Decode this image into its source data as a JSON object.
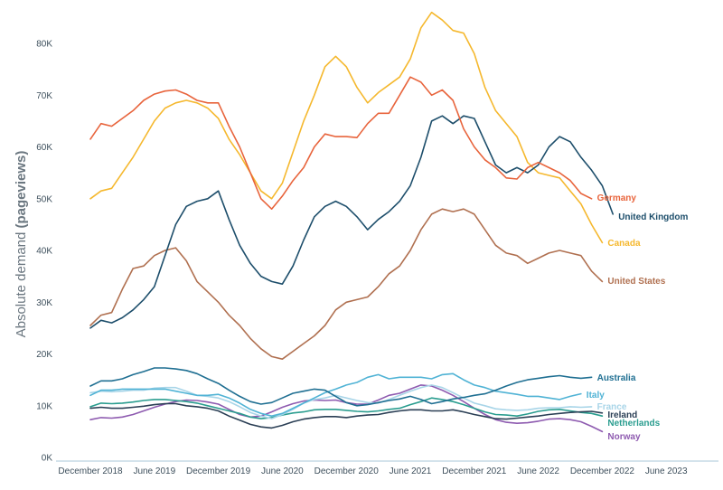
{
  "chart_data": {
    "type": "line",
    "ylabel": "Absolute demand",
    "ylabel_bold": "(pageviews)",
    "xlabel": "",
    "ylim": [
      0,
      88000
    ],
    "y_ticks": [
      0,
      10000,
      20000,
      30000,
      40000,
      50000,
      60000,
      70000,
      80000
    ],
    "y_tick_labels": [
      "0K",
      "10K",
      "20K",
      "30K",
      "40K",
      "50K",
      "60K",
      "70K",
      "80K"
    ],
    "x_start": "2018-12",
    "x_ticks": [
      "2018-12",
      "2019-06",
      "2019-12",
      "2020-06",
      "2020-12",
      "2021-06",
      "2021-12",
      "2022-06",
      "2022-12",
      "2023-06"
    ],
    "x_tick_labels": [
      "December 2018",
      "June 2019",
      "December 2019",
      "June 2020",
      "December 2020",
      "June 2021",
      "December 2021",
      "June 2022",
      "December 2022",
      "June 2023"
    ],
    "grid": false,
    "legend": "inline labels at line ends",
    "series": [
      {
        "name": "Germany",
        "color": "#e8643c",
        "values": [
          61500,
          64500,
          64000,
          65500,
          67000,
          69000,
          70200,
          70800,
          71000,
          70200,
          69000,
          68500,
          68500,
          64000,
          60000,
          55000,
          50000,
          48000,
          50500,
          53500,
          56000,
          60000,
          62500,
          62000,
          62000,
          61800,
          64500,
          66500,
          66500,
          70000,
          73500,
          72500,
          70000,
          71000,
          69000,
          63500,
          60000,
          57500,
          56000,
          54000,
          53800,
          56000,
          57000,
          56000,
          55000,
          53500,
          51000,
          50000
        ]
      },
      {
        "name": "United Kingdom",
        "color": "#1d4e6b",
        "values": [
          25000,
          26500,
          26000,
          27000,
          28500,
          30500,
          33000,
          39000,
          45000,
          48500,
          49500,
          50000,
          51500,
          46000,
          41000,
          37500,
          35000,
          34000,
          33500,
          37000,
          42000,
          46500,
          48500,
          49500,
          48500,
          46500,
          44000,
          46000,
          47500,
          49500,
          52500,
          58000,
          65000,
          66000,
          64500,
          66000,
          65500,
          61000,
          56500,
          55000,
          56000,
          55000,
          56500,
          60000,
          62000,
          61000,
          58000,
          55500,
          52500,
          47000
        ]
      },
      {
        "name": "Canada",
        "color": "#f5b82e",
        "values": [
          50000,
          51500,
          52000,
          55000,
          58000,
          61500,
          65000,
          67500,
          68500,
          69000,
          68500,
          67500,
          65500,
          61500,
          58500,
          55000,
          51500,
          50000,
          53000,
          59000,
          65000,
          70000,
          75500,
          77500,
          75500,
          71500,
          68500,
          70500,
          72000,
          73500,
          77000,
          83000,
          86000,
          84500,
          82500,
          82000,
          78000,
          71500,
          67000,
          64500,
          62000,
          57000,
          55000,
          54500,
          54000,
          51500,
          49000,
          45000,
          41500
        ]
      },
      {
        "name": "United States",
        "color": "#b07050",
        "values": [
          25500,
          27500,
          28000,
          32500,
          36500,
          37000,
          39000,
          40000,
          40500,
          38000,
          34000,
          32000,
          30000,
          27500,
          25500,
          23000,
          21000,
          19500,
          19000,
          20500,
          22000,
          23500,
          25500,
          28500,
          30000,
          30500,
          31000,
          33000,
          35500,
          37000,
          40000,
          44000,
          47000,
          48000,
          47500,
          48000,
          47000,
          44000,
          41000,
          39500,
          39000,
          37500,
          38500,
          39500,
          40000,
          39500,
          39000,
          36000,
          34000
        ]
      },
      {
        "name": "Australia",
        "color": "#1f6f92",
        "values": [
          13800,
          14800,
          14800,
          15200,
          16000,
          16600,
          17300,
          17300,
          17100,
          16800,
          16200,
          15200,
          14300,
          13000,
          11800,
          10800,
          10300,
          10600,
          11500,
          12400,
          12800,
          13200,
          13000,
          11800,
          10600,
          10000,
          10200,
          10600,
          11000,
          11300,
          11800,
          11200,
          10400,
          10800,
          11300,
          11600,
          12000,
          12300,
          13000,
          13800,
          14500,
          15000,
          15300,
          15600,
          15800,
          15500,
          15300,
          15500
        ]
      },
      {
        "name": "Italy",
        "color": "#50b3d5",
        "values": [
          12000,
          13000,
          13000,
          13200,
          13200,
          13200,
          13200,
          13200,
          12800,
          12400,
          12000,
          12000,
          12200,
          11500,
          10500,
          9300,
          8500,
          8000,
          8500,
          9500,
          10500,
          11500,
          12500,
          13200,
          14000,
          14500,
          15500,
          16000,
          15200,
          15500,
          15500,
          15500,
          15200,
          16000,
          16200,
          15000,
          14000,
          13500,
          12800,
          12500,
          12200,
          11800,
          11800,
          11500,
          11200,
          11800,
          12300
        ]
      },
      {
        "name": "France",
        "color": "#a8d5e8",
        "values": [
          12500,
          12800,
          12700,
          12800,
          13000,
          13000,
          13400,
          13500,
          13500,
          12800,
          12000,
          11800,
          11500,
          10800,
          9800,
          8700,
          8000,
          7500,
          8300,
          9300,
          10500,
          11200,
          11500,
          12000,
          11500,
          11000,
          10600,
          10500,
          11200,
          12000,
          12800,
          13500,
          14000,
          13500,
          12500,
          11500,
          10500,
          10000,
          9400,
          9200,
          9100,
          9200,
          9500,
          9600,
          9600,
          9800,
          9700,
          9800
        ]
      },
      {
        "name": "Ireland",
        "color": "#2b3f55",
        "values": [
          9500,
          9700,
          9500,
          9500,
          9700,
          9900,
          10200,
          10400,
          10400,
          10000,
          9800,
          9500,
          9000,
          8000,
          7200,
          6400,
          5900,
          5700,
          6200,
          6900,
          7400,
          7700,
          7900,
          7900,
          7700,
          8000,
          8200,
          8300,
          8700,
          9000,
          9200,
          9200,
          9000,
          9000,
          9200,
          8800,
          8300,
          7900,
          7500,
          7400,
          7600,
          7800,
          8000,
          8300,
          8500,
          8700,
          8800,
          8900,
          8600
        ]
      },
      {
        "name": "Netherlands",
        "color": "#2a9d8f",
        "values": [
          9800,
          10500,
          10400,
          10500,
          10700,
          11000,
          11200,
          11200,
          11000,
          10800,
          10500,
          10000,
          9500,
          9000,
          8500,
          7800,
          7500,
          7700,
          8200,
          8600,
          8800,
          9200,
          9300,
          9300,
          9100,
          8900,
          8800,
          9000,
          9300,
          9500,
          10200,
          10800,
          11500,
          11200,
          10800,
          10200,
          9500,
          8800,
          8300,
          8200,
          8000,
          8400,
          8900,
          9200,
          9300,
          9000,
          8700,
          8500,
          8000
        ]
      },
      {
        "name": "Norway",
        "color": "#8e5bb0",
        "values": [
          7300,
          7700,
          7600,
          7800,
          8300,
          9000,
          9700,
          10300,
          10800,
          11100,
          11000,
          10700,
          10300,
          9300,
          8300,
          7800,
          8000,
          8800,
          9700,
          10400,
          10900,
          11100,
          11000,
          11100,
          10600,
          10300,
          10300,
          11100,
          12000,
          12400,
          13200,
          14000,
          13800,
          13000,
          12000,
          10800,
          9500,
          8300,
          7300,
          6800,
          6600,
          6700,
          7000,
          7400,
          7500,
          7300,
          6900,
          6000,
          5000
        ]
      }
    ]
  }
}
